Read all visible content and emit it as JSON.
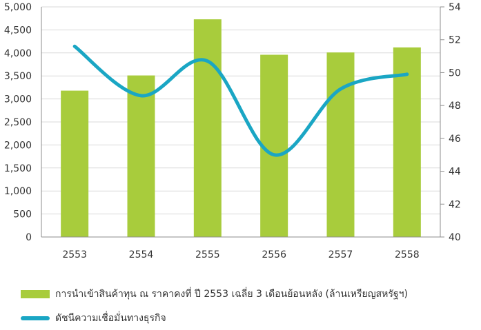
{
  "chart_data": {
    "type": "bar+line",
    "categories": [
      "2553",
      "2554",
      "2555",
      "2556",
      "2557",
      "2558"
    ],
    "series": [
      {
        "name": "การนำเข้าสินค้าทุน ณ ราคาคงที่ ปี 2553 เฉลี่ย 3 เดือนย้อนหลัง (ล้านเหรียญสหรัฐฯ)",
        "type": "bar",
        "axis": "left",
        "values": [
          3180,
          3510,
          4730,
          3960,
          4010,
          4120
        ]
      },
      {
        "name": "ดัชนีความเชื่อมั่นทางธุรกิจ",
        "type": "line",
        "axis": "right",
        "values": [
          51.6,
          48.6,
          50.7,
          45.0,
          49.0,
          49.9
        ]
      }
    ],
    "y_left": {
      "range": [
        0,
        5000
      ],
      "tick_labels": [
        "0",
        "500",
        "1,000",
        "1,500",
        "2,000",
        "2,500",
        "3,000",
        "3,500",
        "4,000",
        "4,500",
        "5,000"
      ]
    },
    "y_right": {
      "range": [
        40,
        54
      ],
      "tick_labels": [
        "40",
        "42",
        "44",
        "46",
        "48",
        "50",
        "52",
        "54"
      ]
    },
    "grid": "horizontal",
    "legend_position": "bottom-left",
    "colors": {
      "bar": "#a8cc3c",
      "line": "#1aa6c4",
      "grid": "#d9d9d9",
      "axis": "#8c8c8c"
    }
  }
}
